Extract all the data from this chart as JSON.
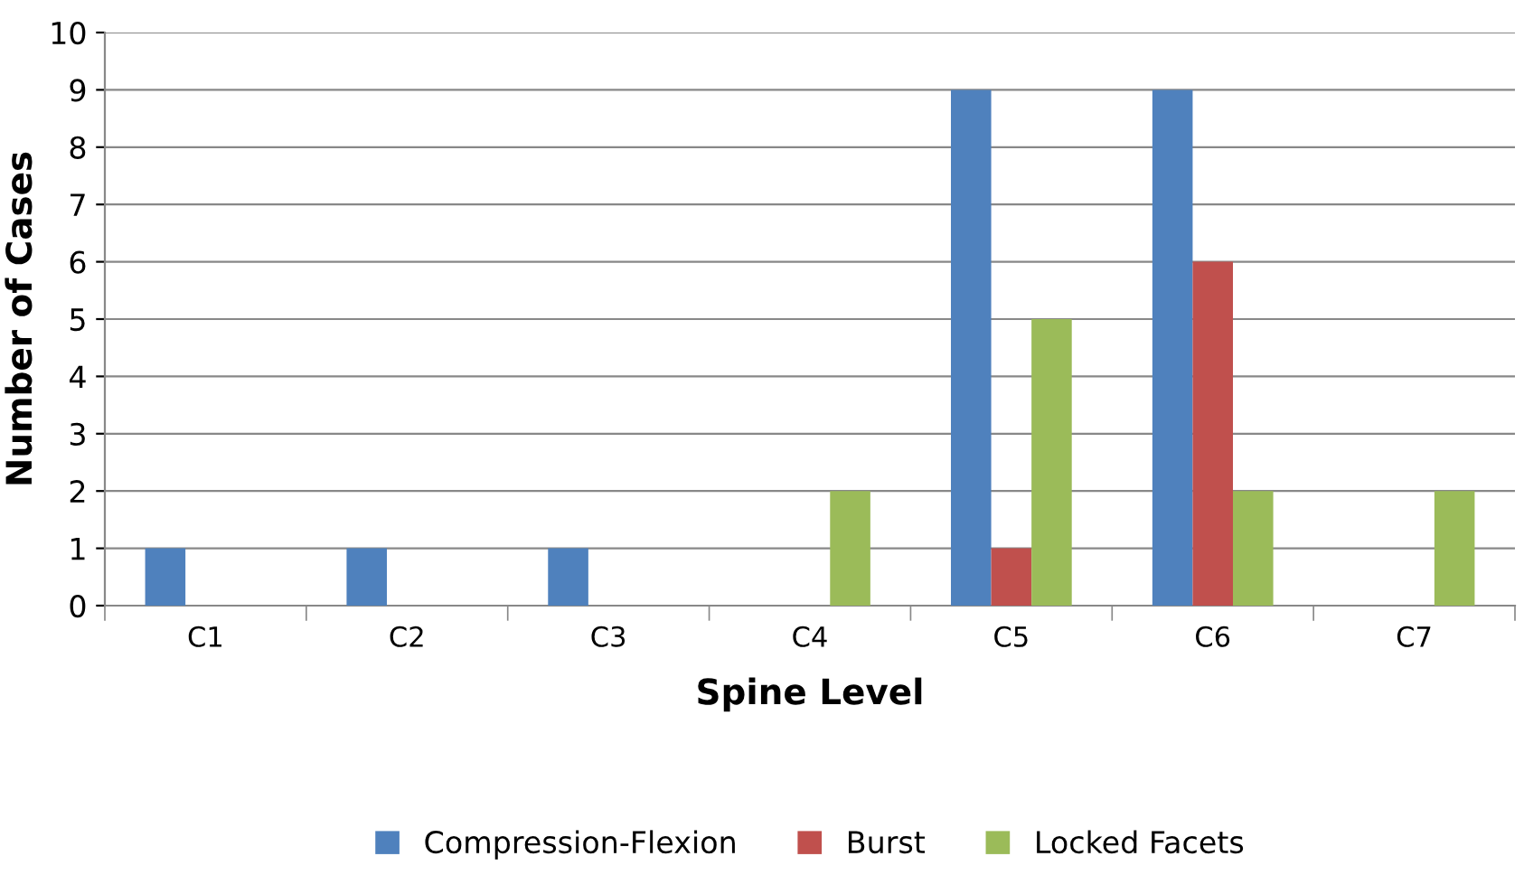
{
  "chart_data": {
    "type": "bar",
    "xlabel": "Spine Level",
    "ylabel": "Number of Cases",
    "categories": [
      "C1",
      "C2",
      "C3",
      "C4",
      "C5",
      "C6",
      "C7"
    ],
    "series": [
      {
        "name": "Compression-Flexion",
        "color": "#4f81bd",
        "values": [
          1,
          1,
          1,
          0,
          9,
          9,
          0
        ]
      },
      {
        "name": "Burst",
        "color": "#c0504d",
        "values": [
          0,
          0,
          0,
          0,
          1,
          6,
          0
        ]
      },
      {
        "name": "Locked Facets",
        "color": "#9bbb59",
        "values": [
          0,
          0,
          0,
          2,
          5,
          2,
          2
        ]
      }
    ],
    "ylim": [
      0,
      10
    ],
    "yticks": [
      0,
      1,
      2,
      3,
      4,
      5,
      6,
      7,
      8,
      9,
      10
    ],
    "grid": "y",
    "legend": "bottom"
  }
}
